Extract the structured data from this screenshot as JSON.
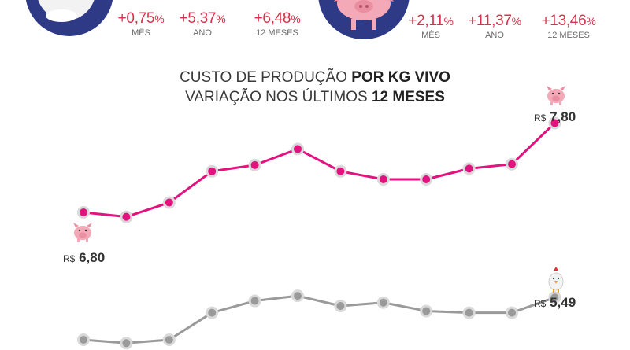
{
  "header": {
    "chicken": {
      "stats": [
        {
          "value": "+0,75",
          "unit": "%",
          "label": "MÊS"
        },
        {
          "value": "+5,37",
          "unit": "%",
          "label": "ANO"
        },
        {
          "value": "+6,48",
          "unit": "%",
          "label": "12 MESES"
        }
      ]
    },
    "pig": {
      "stats": [
        {
          "value": "+2,11",
          "unit": "%",
          "label": "MÊS"
        },
        {
          "value": "+11,37",
          "unit": "%",
          "label": "ANO"
        },
        {
          "value": "+13,46",
          "unit": "%",
          "label": "12 MESES"
        }
      ]
    }
  },
  "chart_data": {
    "type": "line",
    "title_line1_prefix": "CUSTO DE PRODUÇÃO ",
    "title_line1_bold": "POR KG VIVO",
    "title_line2_prefix": "VARIAÇÃO NOS ÚLTIMOS ",
    "title_line2_bold": "12 MESES",
    "series": [
      {
        "icon": "pig-icon",
        "color": "#e2127f",
        "values": [
          6.8,
          6.75,
          6.91,
          7.26,
          7.33,
          7.51,
          7.26,
          7.17,
          7.17,
          7.29,
          7.34,
          7.8
        ],
        "start_label": {
          "currency": "R$",
          "amount": "6,80"
        },
        "end_label": {
          "currency": "R$",
          "amount": "7,80"
        }
      },
      {
        "icon": "chicken-icon",
        "color": "#9a9a9a",
        "values": [
          5.24,
          5.22,
          5.24,
          5.4,
          5.47,
          5.5,
          5.44,
          5.46,
          5.41,
          5.4,
          5.4,
          5.49
        ],
        "start_label": null,
        "end_label": {
          "currency": "R$",
          "amount": "5,49"
        }
      }
    ],
    "grid": false,
    "legend": "none"
  }
}
